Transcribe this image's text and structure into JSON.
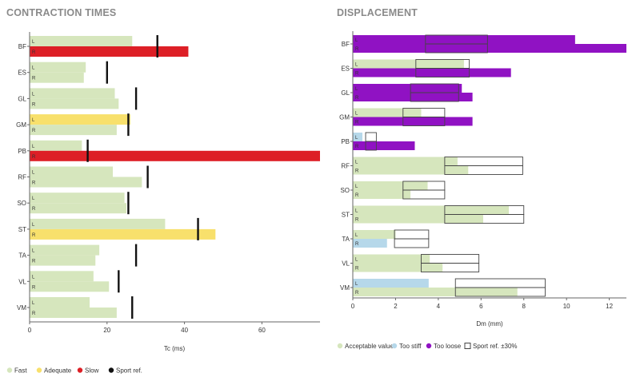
{
  "colors": {
    "fast": "#d6e6bd",
    "adequate": "#f8e06c",
    "slow": "#dd1f26",
    "sport_ref": "#111111",
    "acceptable": "#d6e6bd",
    "too_stiff": "#b6d8ea",
    "too_loose": "#9012c3",
    "ref_box": "#444444",
    "axis": "#666666",
    "title": "#8a8a8a"
  },
  "chart_data": [
    {
      "type": "bar",
      "title": "CONTRACTION TIMES",
      "xlabel": "Tc (ms)",
      "xlim": [
        0,
        75
      ],
      "xticks": [
        0,
        20,
        40,
        60
      ],
      "categories": [
        "BF",
        "ES",
        "GL",
        "GM",
        "PB",
        "RF",
        "SO",
        "ST",
        "TA",
        "VL",
        "VM"
      ],
      "side_labels": [
        "L",
        "R"
      ],
      "series": [
        {
          "name": "L",
          "values": [
            26.5,
            14.5,
            22,
            26,
            13.5,
            21.5,
            24.5,
            35,
            18,
            16.5,
            15.5
          ],
          "status": [
            "fast",
            "fast",
            "fast",
            "adequate",
            "fast",
            "fast",
            "fast",
            "fast",
            "fast",
            "fast",
            "fast"
          ]
        },
        {
          "name": "R",
          "values": [
            41,
            14,
            23,
            22.5,
            75,
            29,
            25,
            48,
            17,
            20.5,
            22.5
          ],
          "status": [
            "slow",
            "fast",
            "fast",
            "fast",
            "slow",
            "fast",
            "fast",
            "adequate",
            "fast",
            "fast",
            "fast"
          ]
        }
      ],
      "sport_ref": [
        33,
        20,
        27.5,
        25.5,
        15,
        30.5,
        25.5,
        43.5,
        27.5,
        23,
        26.5
      ],
      "legend": [
        {
          "label": "Fast",
          "key": "fast",
          "marker": "dot"
        },
        {
          "label": "Adequate",
          "key": "adequate",
          "marker": "dot"
        },
        {
          "label": "Slow",
          "key": "slow",
          "marker": "dot"
        },
        {
          "label": "Sport ref.",
          "key": "sport_ref",
          "marker": "dot"
        }
      ]
    },
    {
      "type": "bar",
      "title": "DISPLACEMENT",
      "xlabel": "Dm (mm)",
      "xlim": [
        0,
        12.8
      ],
      "xticks": [
        0,
        2,
        4,
        6,
        8,
        10,
        12
      ],
      "categories": [
        "BF",
        "ES",
        "GL",
        "GM",
        "PB",
        "RF",
        "SO",
        "ST",
        "TA",
        "VL",
        "VM"
      ],
      "side_labels": [
        "L",
        "R"
      ],
      "series": [
        {
          "name": "L",
          "values": [
            10.4,
            5.2,
            5.1,
            3.2,
            0.45,
            4.9,
            3.5,
            7.3,
            2.0,
            3.6,
            3.55
          ],
          "status": [
            "loose",
            "ok",
            "loose",
            "ok",
            "stiff",
            "ok",
            "ok",
            "ok",
            "ok",
            "ok",
            "stiff"
          ]
        },
        {
          "name": "R",
          "values": [
            12.8,
            7.4,
            5.6,
            5.6,
            2.9,
            5.4,
            2.7,
            6.1,
            1.6,
            4.2,
            7.7
          ],
          "status": [
            "loose",
            "loose",
            "loose",
            "loose",
            "loose",
            "ok",
            "ok",
            "ok",
            "stiff",
            "ok",
            "ok"
          ]
        }
      ],
      "sport_ref_range": [
        [
          3.4,
          6.3
        ],
        [
          2.95,
          5.45
        ],
        [
          2.7,
          4.95
        ],
        [
          2.35,
          4.3
        ],
        [
          0.6,
          1.1
        ],
        [
          4.3,
          7.95
        ],
        [
          2.35,
          4.3
        ],
        [
          4.3,
          8.0
        ],
        [
          1.95,
          3.55
        ],
        [
          3.2,
          5.9
        ],
        [
          4.8,
          9.0
        ]
      ],
      "legend": [
        {
          "label": "Acceptable value",
          "key": "acceptable",
          "marker": "dot"
        },
        {
          "label": "Too stiff",
          "key": "too_stiff",
          "marker": "dot"
        },
        {
          "label": "Too loose",
          "key": "too_loose",
          "marker": "dot"
        },
        {
          "label": "Sport ref. ±30%",
          "key": "ref_box",
          "marker": "box"
        }
      ]
    }
  ]
}
